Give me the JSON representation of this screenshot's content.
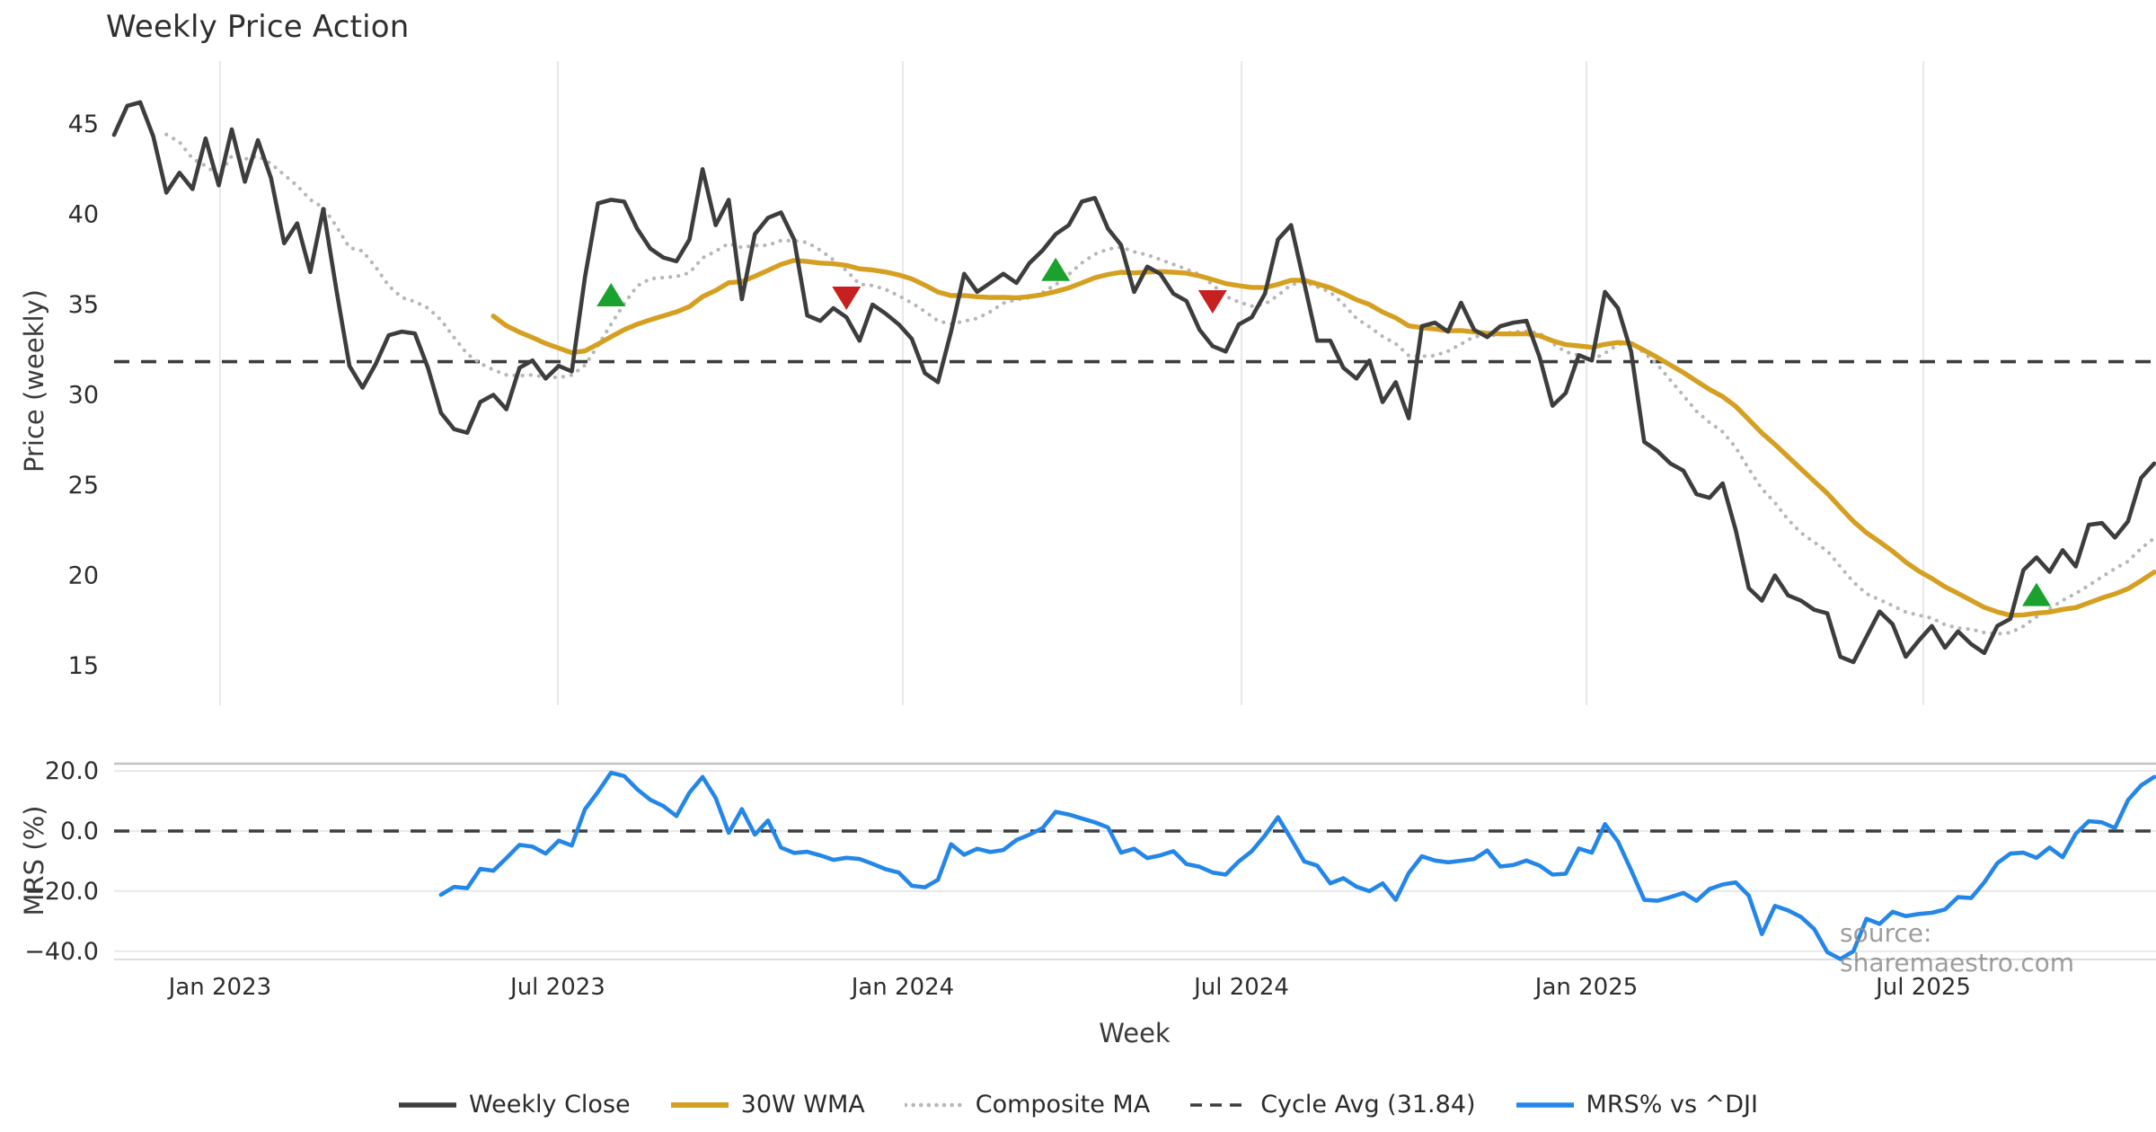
{
  "watermark": "source: sharemaestro.com",
  "legend": [
    {
      "label": "Weekly Close",
      "color": "#3d3d3d",
      "style": "solid",
      "weight": 5.5
    },
    {
      "label": "30W WMA",
      "color": "#d5a021",
      "style": "solid",
      "weight": 6
    },
    {
      "label": "Composite MA",
      "color": "#b7b7b7",
      "style": "dotted",
      "weight": 4.5
    },
    {
      "label": "Cycle Avg (31.84)",
      "color": "#3d3d3d",
      "style": "dashed",
      "weight": 3.5
    },
    {
      "label": "MRS% vs ^DJI",
      "color": "#2487e8",
      "style": "solid",
      "weight": 5.5
    }
  ],
  "chart_data": {
    "type": "line",
    "title": "Weekly Price Action",
    "xlabel": "Week",
    "x_unit": "weekly index, Nov 2022 through Nov 2025",
    "x_ticks": [
      {
        "label": "Jan 2023",
        "week": 8.1
      },
      {
        "label": "Jul 2023",
        "week": 33.93
      },
      {
        "label": "Jan 2024",
        "week": 60.31
      },
      {
        "label": "Jul 2024",
        "week": 86.21
      },
      {
        "label": "Jan 2025",
        "week": 112.59
      },
      {
        "label": "Jul 2025",
        "week": 138.35
      }
    ],
    "price_panel": {
      "ylabel": "Price (weekly)",
      "ylim": [
        13.0,
        48.5
      ],
      "grid": "vertical-only",
      "yticks": [
        {
          "v": 45,
          "label": "45"
        },
        {
          "v": 40,
          "label": "40"
        },
        {
          "v": 35,
          "label": "35"
        },
        {
          "v": 30,
          "label": "30"
        },
        {
          "v": 25,
          "label": "25"
        },
        {
          "v": 20,
          "label": "20"
        },
        {
          "v": 15,
          "label": "15"
        }
      ],
      "cycle_avg": 31.84,
      "wma_window": 30,
      "composite_windows": [
        5,
        10,
        20
      ],
      "weekly_close": [
        44.4,
        46.0,
        46.2,
        44.3,
        41.2,
        42.3,
        41.4,
        44.2,
        41.6,
        44.7,
        41.8,
        44.1,
        42.0,
        38.4,
        39.5,
        36.8,
        40.3,
        35.8,
        31.6,
        30.4,
        31.7,
        33.3,
        33.5,
        33.4,
        31.5,
        29.0,
        28.1,
        27.9,
        29.6,
        30.0,
        29.2,
        31.5,
        31.9,
        30.9,
        31.6,
        31.3,
        36.5,
        40.6,
        40.8,
        40.7,
        39.2,
        38.1,
        37.6,
        37.4,
        38.6,
        42.5,
        39.4,
        40.8,
        35.3,
        38.9,
        39.8,
        40.1,
        38.6,
        34.4,
        34.1,
        34.8,
        34.3,
        33.0,
        35.0,
        34.5,
        33.9,
        33.1,
        31.2,
        30.7,
        33.5,
        36.7,
        35.7,
        36.2,
        36.7,
        36.2,
        37.3,
        38.0,
        38.9,
        39.4,
        40.7,
        40.9,
        39.2,
        38.3,
        35.7,
        37.1,
        36.7,
        35.6,
        35.2,
        33.6,
        32.7,
        32.4,
        33.9,
        34.3,
        35.6,
        38.6,
        39.4,
        36.2,
        33.0,
        33.0,
        31.5,
        30.9,
        31.9,
        29.6,
        30.7,
        28.7,
        33.8,
        34.0,
        33.5,
        35.1,
        33.6,
        33.2,
        33.8,
        34.0,
        34.1,
        32.1,
        29.4,
        30.1,
        32.2,
        31.9,
        35.7,
        34.8,
        32.4,
        27.4,
        26.9,
        26.2,
        25.8,
        24.5,
        24.3,
        25.1,
        22.5,
        19.3,
        18.6,
        20.0,
        18.9,
        18.6,
        18.1,
        17.9,
        15.5,
        15.2,
        16.6,
        18.0,
        17.3,
        15.5,
        16.4,
        17.2,
        16.0,
        16.9,
        16.2,
        15.7,
        17.2,
        17.6,
        20.3,
        21.0,
        20.2,
        21.4,
        20.5,
        22.8,
        22.9,
        22.1,
        23.0,
        25.4,
        26.2
      ],
      "signals": [
        {
          "type": "buy",
          "week": 38,
          "value": 35.5
        },
        {
          "type": "sell",
          "week": 56,
          "value": 35.4
        },
        {
          "type": "buy",
          "week": 72,
          "value": 36.9
        },
        {
          "type": "sell",
          "week": 84,
          "value": 35.2
        },
        {
          "type": "buy",
          "week": 147,
          "value": 18.9
        }
      ]
    },
    "mrs_panel": {
      "ylabel": "MRS (%)",
      "series_name": "MRS% vs ^DJI",
      "ylim": [
        -42.8,
        22.4
      ],
      "grid": "horizontal-only",
      "zero_line": 0.0,
      "yticks": [
        {
          "v": 20,
          "label": "20.0"
        },
        {
          "v": 0,
          "label": "0.0"
        },
        {
          "v": -20,
          "label": "−20.0"
        },
        {
          "v": -40,
          "label": "−40.0"
        }
      ],
      "start_week": 25,
      "values": [
        -21.2,
        -18.6,
        -19.0,
        -12.6,
        -13.2,
        -9.0,
        -4.6,
        -5.2,
        -7.5,
        -3.2,
        -4.8,
        7.2,
        13.0,
        19.4,
        18.3,
        13.9,
        10.4,
        8.3,
        5.0,
        12.8,
        18.0,
        11.0,
        -0.6,
        7.3,
        -1.2,
        3.5,
        -5.5,
        -7.3,
        -6.9,
        -8.1,
        -9.6,
        -8.9,
        -9.3,
        -10.9,
        -12.7,
        -13.8,
        -18.2,
        -18.7,
        -16.2,
        -4.4,
        -7.9,
        -5.9,
        -7.0,
        -6.3,
        -3.0,
        -1.2,
        1.0,
        6.4,
        5.5,
        4.2,
        2.9,
        1.2,
        -7.2,
        -5.9,
        -9.0,
        -8.1,
        -6.7,
        -11.0,
        -11.9,
        -13.8,
        -14.5,
        -10.1,
        -6.7,
        -1.5,
        4.6,
        -2.6,
        -10.1,
        -11.5,
        -17.4,
        -15.7,
        -18.5,
        -20.0,
        -17.4,
        -22.9,
        -14.0,
        -8.4,
        -9.8,
        -10.4,
        -9.9,
        -9.3,
        -6.5,
        -11.8,
        -11.3,
        -9.8,
        -11.5,
        -14.5,
        -14.2,
        -5.8,
        -7.2,
        2.3,
        -3.5,
        -13.0,
        -22.9,
        -23.2,
        -22.0,
        -20.6,
        -23.2,
        -19.3,
        -17.8,
        -17.1,
        -21.5,
        -34.3,
        -24.9,
        -26.4,
        -28.6,
        -32.6,
        -40.3,
        -42.6,
        -40.0,
        -29.2,
        -30.9,
        -26.9,
        -28.3,
        -27.6,
        -27.2,
        -26.1,
        -22.0,
        -22.3,
        -17.1,
        -10.7,
        -7.5,
        -7.2,
        -8.9,
        -5.5,
        -8.7,
        -0.9,
        3.3,
        2.9,
        1.0,
        10.3,
        15.2,
        18.0
      ]
    },
    "colors": {
      "weekly_close": "#3d3d3d",
      "wma": "#d5a021",
      "composite": "#b7b7b7",
      "cycle_avg": "#3d3d3d",
      "mrs": "#2487e8",
      "buy_marker": "#1aa12e",
      "sell_marker": "#c81f1f",
      "gridline": "#e9e9ee",
      "spine": "#c2c2c8",
      "tick_text": "#2e2e2e"
    }
  }
}
